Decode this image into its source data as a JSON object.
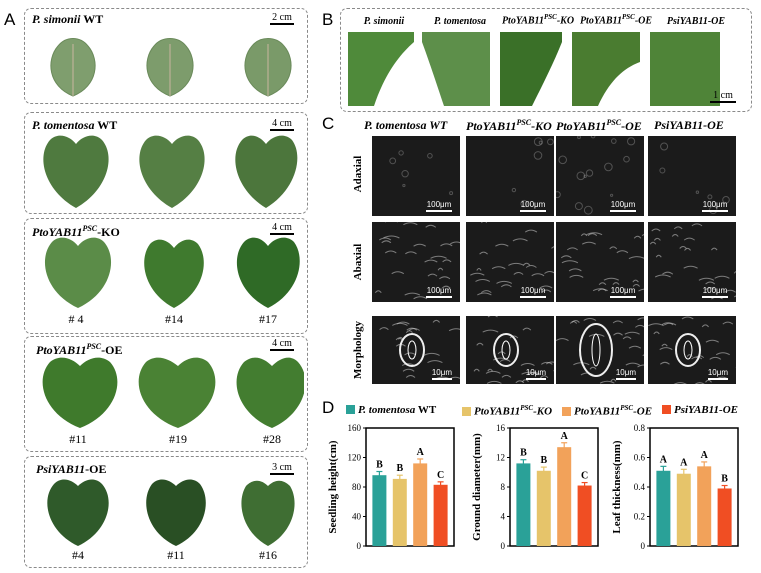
{
  "panelA": {
    "letter": "A",
    "groups": [
      {
        "title": "P. simonii",
        "title_suffix": " WT",
        "scale": "2 cm",
        "numbers": []
      },
      {
        "title": "P. tomentosa",
        "title_suffix": " WT",
        "scale": "4 cm",
        "numbers": []
      },
      {
        "title": "PtoYAB11",
        "sup": "PSC",
        "title_suffix": "-KO",
        "scale": "4 cm",
        "numbers": [
          "# 4",
          "#14",
          "#17"
        ]
      },
      {
        "title": "PtoYAB11",
        "sup": "PSC",
        "title_suffix": "-OE",
        "scale": "4 cm",
        "numbers": [
          "#11",
          "#19",
          "#28"
        ]
      },
      {
        "title": "PsiYAB11",
        "title_suffix": "-OE",
        "scale": "3 cm",
        "numbers": [
          "#4",
          "#11",
          "#16"
        ]
      }
    ]
  },
  "panelB": {
    "letter": "B",
    "headers": [
      {
        "main": "P. simonii"
      },
      {
        "main": "P. tomentosa"
      },
      {
        "main": "PtoYAB11",
        "sup": "PSC",
        "suffix": "-KO"
      },
      {
        "main": "PtoYAB11",
        "sup": "PSC",
        "suffix": "-OE"
      },
      {
        "main": "PsiYAB11-OE"
      }
    ],
    "scale": "1 cm"
  },
  "panelC": {
    "letter": "C",
    "headers": [
      {
        "main": "P. tomentosa WT"
      },
      {
        "main": "PtoYAB11",
        "sup": "PSC",
        "suffix": "-KO"
      },
      {
        "main": "PtoYAB11",
        "sup": "PSC",
        "suffix": "-OE"
      },
      {
        "main": "PsiYAB11-OE"
      }
    ],
    "rows": [
      "Adaxial",
      "Abaxial",
      "Morphology"
    ],
    "scale_row1": "100μm",
    "scale_row2": "100μm",
    "scale_row3": "10μm"
  },
  "panelD": {
    "letter": "D",
    "colors": {
      "wt": "#2aa198",
      "ko": "#e6c46a",
      "oe": "#f2a25a",
      "psi": "#f04e23"
    },
    "legend": [
      {
        "main": "P. tomentosa",
        "suffix": " WT"
      },
      {
        "main": "PtoYAB11",
        "sup": "PSC",
        "suffix": "-KO"
      },
      {
        "main": "PtoYAB11",
        "sup": "PSC",
        "suffix": "-OE"
      },
      {
        "main": "PsiYAB11-OE"
      }
    ]
  },
  "chart_data": [
    {
      "type": "bar",
      "categories": [
        "P. tomentosa WT",
        "PtoYAB11PSC-KO",
        "PtoYAB11PSC-OE",
        "PsiYAB11-OE"
      ],
      "values": [
        96,
        91,
        112,
        83
      ],
      "errors": [
        5,
        5,
        6,
        4
      ],
      "letters": [
        "B",
        "B",
        "A",
        "C"
      ],
      "ylabel": "Seedling height(cm)",
      "ylim": [
        0,
        160
      ],
      "yticks": [
        "0",
        "40",
        "80",
        "120",
        "160"
      ]
    },
    {
      "type": "bar",
      "categories": [
        "P. tomentosa WT",
        "PtoYAB11PSC-KO",
        "PtoYAB11PSC-OE",
        "PsiYAB11-OE"
      ],
      "values": [
        11.2,
        10.2,
        13.4,
        8.2
      ],
      "errors": [
        0.5,
        0.5,
        0.6,
        0.4
      ],
      "letters": [
        "B",
        "B",
        "A",
        "C"
      ],
      "ylabel": "Ground diameter(mm)",
      "ylim": [
        0,
        16
      ],
      "yticks": [
        "0",
        "4",
        "8",
        "12",
        "16"
      ]
    },
    {
      "type": "bar",
      "categories": [
        "P. tomentosa WT",
        "PtoYAB11PSC-KO",
        "PtoYAB11PSC-OE",
        "PsiYAB11-OE"
      ],
      "values": [
        0.51,
        0.49,
        0.54,
        0.39
      ],
      "errors": [
        0.03,
        0.03,
        0.03,
        0.02
      ],
      "letters": [
        "A",
        "A",
        "A",
        "B"
      ],
      "ylabel": "Leaf thickness(mm)",
      "ylim": [
        0,
        0.8
      ],
      "yticks": [
        "0",
        "0.2",
        "0.4",
        "0.6",
        "0.8"
      ]
    }
  ]
}
